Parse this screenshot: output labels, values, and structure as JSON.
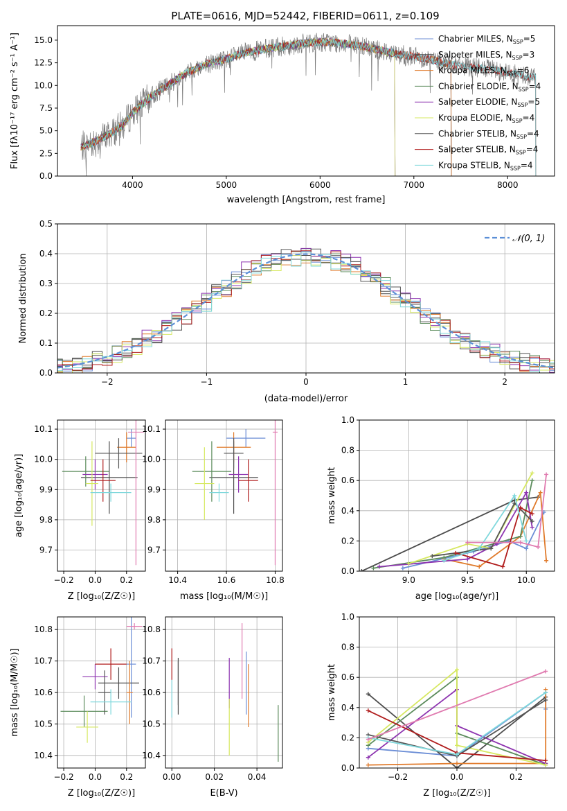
{
  "figure": {
    "title": "PLATE=0616, MJD=52442, FIBERID=0611, z=0.109",
    "series_colors": [
      "#6c8ed6",
      "#4c4c4c",
      "#e07b2c",
      "#5c8c5c",
      "#8e35b0",
      "#d6e860",
      "#555555",
      "#b01c1c",
      "#7fd8dc"
    ],
    "chart_data": [
      {
        "type": "line",
        "id": "spectrum",
        "title": "PLATE=0616, MJD=52442, FIBERID=0611, z=0.109",
        "xlabel": "wavelength [Angstrom, rest frame]",
        "ylabel": "Flux [fλ10⁻¹⁷ erg cm⁻² s⁻¹ A⁻¹]",
        "xlim": [
          3200,
          8500
        ],
        "ylim": [
          0,
          16.6
        ],
        "xticks": [
          4000,
          5000,
          6000,
          7000,
          8000
        ],
        "yticks": [
          0.0,
          2.5,
          5.0,
          7.5,
          10.0,
          12.5,
          15.0
        ],
        "grid": false,
        "legend_position": "top-right",
        "continuum_x": [
          3450,
          3600,
          3750,
          3900,
          4000,
          4200,
          4400,
          4600,
          4800,
          5000,
          5200,
          5400,
          5600,
          5800,
          6000,
          6200,
          6400,
          6600,
          6800,
          7000,
          7200,
          7400,
          7600,
          7800,
          8000,
          8200
        ],
        "continuum_y": [
          3.2,
          3.8,
          4.6,
          5.6,
          7.0,
          8.8,
          10.2,
          11.5,
          12.4,
          12.9,
          13.6,
          14.0,
          14.3,
          14.6,
          14.8,
          14.7,
          14.4,
          14.0,
          13.5,
          13.2,
          12.8,
          12.3,
          12.0,
          11.8,
          11.4,
          11.0
        ],
        "series": [
          {
            "name": "Chabrier MILES, N_SSP=5",
            "label": "Chabrier MILES, N",
            "ssp": "=5",
            "xmax": 7400
          },
          {
            "name": "Salpeter MILES, N_SSP=3",
            "label": "Salpeter MILES, N",
            "ssp": "=3",
            "xmax": 7400
          },
          {
            "name": "Kroupa MILES, N_SSP=6",
            "label": "Kroupa MILES, N",
            "ssp": "=6",
            "xmax": 7400
          },
          {
            "name": "Chabrier ELODIE, N_SSP=4",
            "label": "Chabrier ELODIE, N",
            "ssp": "=4",
            "xmax": 6800
          },
          {
            "name": "Salpeter ELODIE, N_SSP=5",
            "label": "Salpeter ELODIE, N",
            "ssp": "=5",
            "xmax": 6800
          },
          {
            "name": "Kroupa ELODIE, N_SSP=4",
            "label": "Kroupa ELODIE, N",
            "ssp": "=4",
            "xmax": 6800
          },
          {
            "name": "Chabrier STELIB, N_SSP=4",
            "label": "Chabrier STELIB, N",
            "ssp": "=4",
            "xmax": 8300
          },
          {
            "name": "Salpeter STELIB, N_SSP=4",
            "label": "Salpeter STELIB, N",
            "ssp": "=4",
            "xmax": 8300
          },
          {
            "name": "Kroupa STELIB, N_SSP=4",
            "label": "Kroupa STELIB, N",
            "ssp": "=4",
            "xmax": 8300
          }
        ]
      },
      {
        "type": "bar",
        "id": "residuals",
        "xlabel": "(data-model)/error",
        "ylabel": "Normed distribution",
        "xlim": [
          -2.5,
          2.5
        ],
        "ylim": [
          0,
          0.5
        ],
        "xticks": [
          -2,
          -1,
          0,
          1,
          2
        ],
        "yticks": [
          0.0,
          0.1,
          0.2,
          0.3,
          0.4,
          0.5
        ],
        "grid": true,
        "legend_position": "top-right",
        "legend_label": "𝒩(0, 1)",
        "bin_width": 0.1,
        "histogram_amplitudes": [
          0.4,
          0.395,
          0.39,
          0.4,
          0.41,
          0.385,
          0.4,
          0.395,
          0.39
        ]
      },
      {
        "type": "scatter",
        "id": "age-vs-Z",
        "xlabel": "Z [log10(Z/Z☉)]",
        "ylabel": "age  [log10(age/yr)]",
        "xlim": [
          -0.24,
          0.32
        ],
        "ylim": [
          9.63,
          10.13
        ],
        "xticks": [
          -0.2,
          0.0,
          0.2
        ],
        "yticks": [
          9.7,
          9.8,
          9.9,
          10.0,
          10.1
        ],
        "grid": true,
        "points": [
          {
            "x": 0.23,
            "y": 10.07,
            "xerr": 0.03,
            "yerr": 0.03
          },
          {
            "x": 0.09,
            "y": 9.94,
            "xerr": 0.18,
            "yerr": 0.12
          },
          {
            "x": 0.2,
            "y": 10.04,
            "xerr": 0.06,
            "yerr": 0.05
          },
          {
            "x": -0.06,
            "y": 9.96,
            "xerr": 0.15,
            "yerr": 0.05
          },
          {
            "x": 0.0,
            "y": 9.95,
            "xerr": 0.08,
            "yerr": 0.05
          },
          {
            "x": -0.02,
            "y": 9.92,
            "xerr": 0.04,
            "yerr": 0.14
          },
          {
            "x": 0.15,
            "y": 10.02,
            "xerr": 0.15,
            "yerr": 0.05
          },
          {
            "x": 0.05,
            "y": 9.93,
            "xerr": 0.08,
            "yerr": 0.07
          },
          {
            "x": 0.1,
            "y": 9.89,
            "xerr": 0.13,
            "yerr": 0.03
          },
          {
            "x": 0.26,
            "y": 10.09,
            "xerr": 0.05,
            "yerr": 0.44
          }
        ]
      },
      {
        "type": "scatter",
        "id": "age-vs-mass",
        "xlabel": "mass [log10(M/M☉)]",
        "ylabel": "",
        "xlim": [
          10.35,
          10.83
        ],
        "ylim": [
          9.63,
          10.13
        ],
        "xticks": [
          10.4,
          10.6,
          10.8
        ],
        "yticks": [
          9.7,
          9.8,
          9.9,
          10.0,
          10.1
        ],
        "grid": true,
        "points": [
          {
            "x": 10.68,
            "y": 10.07,
            "xerr": 0.08,
            "yerr": 0.03
          },
          {
            "x": 10.63,
            "y": 9.94,
            "xerr": 0.1,
            "yerr": 0.12
          },
          {
            "x": 10.63,
            "y": 10.04,
            "xerr": 0.07,
            "yerr": 0.05
          },
          {
            "x": 10.54,
            "y": 9.96,
            "xerr": 0.08,
            "yerr": 0.1
          },
          {
            "x": 10.65,
            "y": 9.95,
            "xerr": 0.04,
            "yerr": 0.06
          },
          {
            "x": 10.51,
            "y": 9.92,
            "xerr": 0.04,
            "yerr": 0.12
          },
          {
            "x": 10.63,
            "y": 10.02,
            "xerr": 0.04,
            "yerr": 0.05
          },
          {
            "x": 10.69,
            "y": 9.93,
            "xerr": 0.04,
            "yerr": 0.07
          },
          {
            "x": 10.57,
            "y": 9.89,
            "xerr": 0.04,
            "yerr": 0.03
          },
          {
            "x": 10.8,
            "y": 10.09,
            "xerr": 0.01,
            "yerr": 0.44
          }
        ]
      },
      {
        "type": "line",
        "id": "mass-weight-vs-age",
        "xlabel": "age  [log10(age/yr)]",
        "ylabel": "mass weight",
        "xlim": [
          8.58,
          10.24
        ],
        "ylim": [
          0,
          1
        ],
        "xticks": [
          9.0,
          9.5,
          10.0
        ],
        "yticks": [
          0.0,
          0.2,
          0.4,
          0.6,
          0.8,
          1.0
        ],
        "grid": true,
        "series": [
          {
            "x": [
              8.95,
              9.55,
              9.85,
              10.0,
              10.15
            ],
            "y": [
              0.02,
              0.13,
              0.2,
              0.15,
              0.39
            ]
          },
          {
            "x": [
              8.6,
              9.9,
              10.1
            ],
            "y": [
              0.0,
              0.47,
              0.49
            ]
          },
          {
            "x": [
              9.3,
              9.6,
              9.95,
              10.12,
              10.17
            ],
            "y": [
              0.08,
              0.03,
              0.23,
              0.52,
              0.07
            ]
          },
          {
            "x": [
              8.7,
              9.3,
              9.95,
              10.05
            ],
            "y": [
              0.02,
              0.09,
              0.23,
              0.6
            ]
          },
          {
            "x": [
              8.75,
              9.5,
              9.75,
              10.0,
              10.05
            ],
            "y": [
              0.03,
              0.08,
              0.18,
              0.52,
              0.29
            ]
          },
          {
            "x": [
              9.0,
              9.5,
              9.7,
              10.05
            ],
            "y": [
              0.05,
              0.18,
              0.15,
              0.65
            ]
          },
          {
            "x": [
              9.2,
              9.7,
              9.9,
              10.05
            ],
            "y": [
              0.1,
              0.15,
              0.45,
              0.33
            ]
          },
          {
            "x": [
              9.4,
              9.8,
              9.95,
              10.05
            ],
            "y": [
              0.12,
              0.03,
              0.42,
              0.38
            ]
          },
          {
            "x": [
              9.3,
              9.6,
              9.9,
              10.0
            ],
            "y": [
              0.07,
              0.15,
              0.5,
              0.2
            ]
          },
          {
            "x": [
              9.5,
              9.95,
              10.1,
              10.17
            ],
            "y": [
              0.19,
              0.19,
              0.16,
              0.64
            ]
          }
        ]
      },
      {
        "type": "scatter",
        "id": "mass-vs-Z",
        "xlabel": "Z [log10(Z/Z☉)]",
        "ylabel": "mass [log10(M/M☉)]",
        "xlim": [
          -0.24,
          0.32
        ],
        "ylim": [
          10.36,
          10.84
        ],
        "xticks": [
          -0.2,
          0.0,
          0.2
        ],
        "yticks": [
          10.4,
          10.5,
          10.6,
          10.7,
          10.8
        ],
        "grid": true,
        "points": [
          {
            "x": 0.23,
            "y": 10.69,
            "xerr": 0.03,
            "yerr": 0.17
          },
          {
            "x": 0.15,
            "y": 10.63,
            "xerr": 0.13,
            "yerr": 0.05
          },
          {
            "x": 0.22,
            "y": 10.6,
            "xerr": 0.02,
            "yerr": 0.1
          },
          {
            "x": -0.07,
            "y": 10.54,
            "xerr": 0.15,
            "yerr": 0.05
          },
          {
            "x": 0.0,
            "y": 10.65,
            "xerr": 0.08,
            "yerr": 0.04
          },
          {
            "x": -0.05,
            "y": 10.49,
            "xerr": 0.07,
            "yerr": 0.05
          },
          {
            "x": 0.06,
            "y": 10.6,
            "xerr": 0.04,
            "yerr": 0.07
          },
          {
            "x": 0.1,
            "y": 10.69,
            "xerr": 0.1,
            "yerr": 0.05
          },
          {
            "x": 0.1,
            "y": 10.57,
            "xerr": 0.13,
            "yerr": 0.04
          },
          {
            "x": 0.25,
            "y": 10.81,
            "xerr": 0.05,
            "yerr": 0.01
          }
        ]
      },
      {
        "type": "scatter",
        "id": "mass-vs-EBV",
        "xlabel": "E(B-V)",
        "ylabel": "",
        "xlim": [
          -0.003,
          0.052
        ],
        "ylim": [
          10.36,
          10.84
        ],
        "xticks": [
          0.0,
          0.02,
          0.04
        ],
        "yticks": [
          10.4,
          10.5,
          10.6,
          10.7,
          10.8
        ],
        "grid": true,
        "points": [
          {
            "x": 0.035,
            "y": 10.63,
            "xerr": 0,
            "yerr": 0.1
          },
          {
            "x": 0.003,
            "y": 10.62,
            "xerr": 0,
            "yerr": 0.09
          },
          {
            "x": 0.036,
            "y": 10.59,
            "xerr": 0,
            "yerr": 0.1
          },
          {
            "x": 0.05,
            "y": 10.47,
            "xerr": 0,
            "yerr": 0.09
          },
          {
            "x": 0.027,
            "y": 10.63,
            "xerr": 0,
            "yerr": 0.08
          },
          {
            "x": 0.027,
            "y": 10.49,
            "xerr": 0,
            "yerr": 0.09
          },
          {
            "x": 0.003,
            "y": 10.63,
            "xerr": 0,
            "yerr": 0.07
          },
          {
            "x": 0.0,
            "y": 10.69,
            "xerr": 0,
            "yerr": 0.05
          },
          {
            "x": 0.0,
            "y": 10.58,
            "xerr": 0,
            "yerr": 0.06
          },
          {
            "x": 0.033,
            "y": 10.7,
            "xerr": 0,
            "yerr": 0.12
          }
        ]
      },
      {
        "type": "line",
        "id": "mass-weight-vs-Z",
        "xlabel": "Z [log10(Z/Z☉)]",
        "ylabel": "mass weight",
        "xlim": [
          -0.33,
          0.33
        ],
        "ylim": [
          0,
          1
        ],
        "xticks": [
          -0.2,
          0.0,
          0.2
        ],
        "yticks": [
          0.0,
          0.2,
          0.4,
          0.6,
          0.8,
          1.0
        ],
        "grid": true,
        "series": [
          {
            "x": [
              -0.3,
              0.0,
              0.3,
              0.3
            ],
            "y": [
              0.13,
              0.08,
              0.5,
              0.39
            ]
          },
          {
            "x": [
              -0.3,
              0.0,
              0.3
            ],
            "y": [
              0.49,
              0.0,
              0.47
            ]
          },
          {
            "x": [
              -0.3,
              0.0,
              0.3,
              0.3
            ],
            "y": [
              0.02,
              0.03,
              0.03,
              0.52
            ]
          },
          {
            "x": [
              -0.3,
              0.0,
              0.0,
              0.3
            ],
            "y": [
              0.15,
              0.6,
              0.23,
              0.02
            ]
          },
          {
            "x": [
              -0.3,
              0.0,
              0.0,
              0.3
            ],
            "y": [
              0.07,
              0.52,
              0.28,
              0.03
            ]
          },
          {
            "x": [
              -0.3,
              0.0,
              0.0,
              0.3
            ],
            "y": [
              0.17,
              0.65,
              0.15,
              0.02
            ]
          },
          {
            "x": [
              -0.3,
              0.0,
              0.3
            ],
            "y": [
              0.22,
              0.08,
              0.45
            ]
          },
          {
            "x": [
              -0.3,
              0.0,
              0.0,
              0.3
            ],
            "y": [
              0.38,
              0.1,
              0.1,
              0.05
            ]
          },
          {
            "x": [
              -0.3,
              0.0,
              0.3
            ],
            "y": [
              0.2,
              0.09,
              0.5
            ]
          },
          {
            "x": [
              -0.3,
              0.3
            ],
            "y": [
              0.19,
              0.64
            ]
          }
        ]
      }
    ]
  }
}
